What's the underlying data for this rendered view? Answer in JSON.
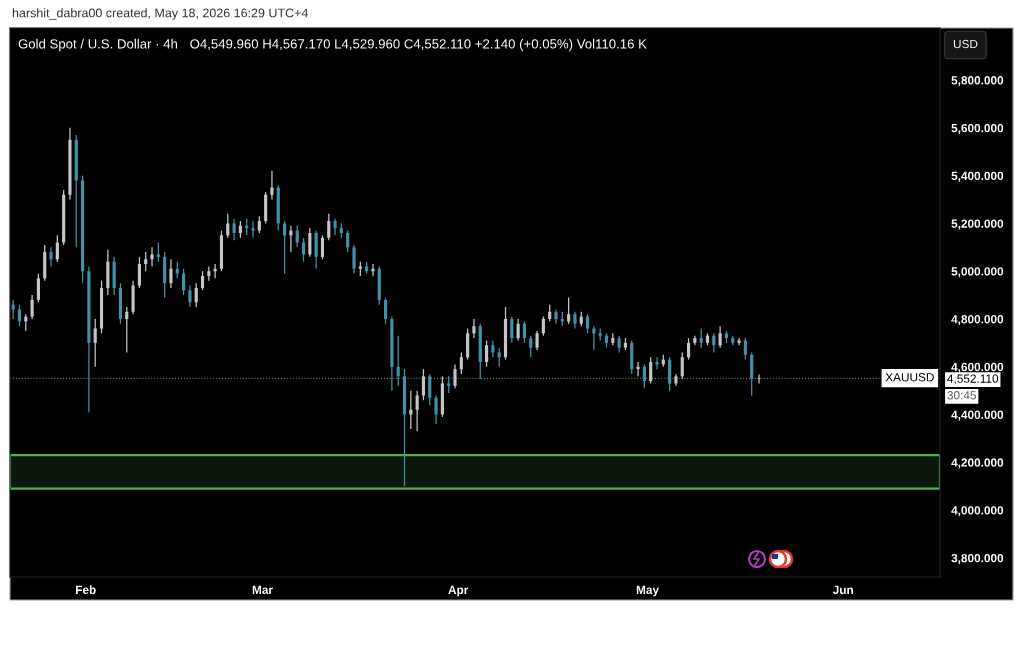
{
  "chart_data": {
    "type": "candlestick",
    "title": "Gold Spot / U.S. Dollar · 4h",
    "subtitle": "O4,549.960 H4,567.170 L4,529.960 C4,552.110 +2.140 (+0.05%) Vol110.16 K",
    "annotations": [
      "harshit_dabra00 created, May 18, 2026 16:29 UTC+4",
      "USD",
      "4,552.110",
      "30:45"
    ],
    "x": [
      "2026-01-20T12:00",
      "2026-01-21T12:00",
      "2026-01-22T12:00",
      "2026-01-23T12:00",
      "2026-01-24T12:00",
      "2026-01-25T12:00",
      "2026-01-26T12:00",
      "2026-01-27T12:00",
      "2026-01-28T12:00",
      "2026-01-29T12:00",
      "2026-01-30T12:00",
      "2026-01-31T12:00",
      "2026-02-01T12:00",
      "2026-02-02T12:00",
      "2026-02-03T12:00",
      "2026-02-04T12:00",
      "2026-02-05T12:00",
      "2026-02-06T12:00",
      "2026-02-07T12:00",
      "2026-02-08T12:00",
      "2026-02-09T12:00",
      "2026-02-10T12:00",
      "2026-02-11T12:00",
      "2026-02-12T12:00",
      "2026-02-13T12:00",
      "2026-02-14T12:00",
      "2026-02-15T12:00",
      "2026-02-16T12:00",
      "2026-02-17T12:00",
      "2026-02-18T12:00",
      "2026-02-19T12:00",
      "2026-02-20T12:00",
      "2026-02-21T12:00",
      "2026-02-22T12:00",
      "2026-02-23T12:00",
      "2026-02-24T12:00",
      "2026-02-25T12:00",
      "2026-02-26T12:00",
      "2026-02-27T12:00",
      "2026-02-28T12:00",
      "2026-03-01T12:00",
      "2026-03-02T12:00",
      "2026-03-03T12:00",
      "2026-03-04T12:00",
      "2026-03-05T12:00",
      "2026-03-06T12:00",
      "2026-03-07T12:00",
      "2026-03-08T12:00",
      "2026-03-09T12:00",
      "2026-03-10T12:00",
      "2026-03-11T12:00",
      "2026-03-12T12:00",
      "2026-03-13T12:00",
      "2026-03-14T12:00",
      "2026-03-15T12:00",
      "2026-03-16T12:00",
      "2026-03-17T12:00",
      "2026-03-18T12:00",
      "2026-03-19T12:00",
      "2026-03-20T12:00",
      "2026-03-21T12:00",
      "2026-03-22T12:00",
      "2026-03-23T12:00",
      "2026-03-24T12:00",
      "2026-03-25T12:00",
      "2026-03-26T12:00",
      "2026-03-27T12:00",
      "2026-03-28T12:00",
      "2026-03-29T12:00",
      "2026-03-30T12:00",
      "2026-03-31T12:00",
      "2026-04-01T12:00",
      "2026-04-02T12:00",
      "2026-04-03T12:00",
      "2026-04-04T12:00",
      "2026-04-05T12:00",
      "2026-04-06T12:00",
      "2026-04-07T12:00",
      "2026-04-08T12:00",
      "2026-04-09T12:00",
      "2026-04-10T12:00",
      "2026-04-11T12:00",
      "2026-04-12T12:00",
      "2026-04-13T12:00",
      "2026-04-14T12:00",
      "2026-04-15T12:00",
      "2026-04-16T12:00",
      "2026-04-17T12:00",
      "2026-04-18T12:00",
      "2026-04-19T12:00",
      "2026-04-20T12:00",
      "2026-04-21T12:00",
      "2026-04-22T12:00",
      "2026-04-23T12:00",
      "2026-04-24T12:00",
      "2026-04-25T12:00",
      "2026-04-26T12:00",
      "2026-04-27T12:00",
      "2026-04-28T12:00",
      "2026-04-29T12:00",
      "2026-04-30T12:00",
      "2026-05-01T12:00",
      "2026-05-02T12:00",
      "2026-05-03T12:00",
      "2026-05-04T12:00",
      "2026-05-05T12:00",
      "2026-05-06T12:00",
      "2026-05-07T12:00",
      "2026-05-08T12:00",
      "2026-05-09T12:00",
      "2026-05-10T12:00",
      "2026-05-11T12:00",
      "2026-05-12T12:00",
      "2026-05-13T12:00",
      "2026-05-14T12:00",
      "2026-05-15T12:00",
      "2026-05-16T12:00",
      "2026-05-17T12:00",
      "2026-05-18T16:00"
    ],
    "ohlc": [
      [
        4860,
        4880,
        4800,
        4840
      ],
      [
        4840,
        4860,
        4770,
        4790
      ],
      [
        4790,
        4820,
        4750,
        4810
      ],
      [
        4810,
        4900,
        4800,
        4880
      ],
      [
        4880,
        4990,
        4870,
        4970
      ],
      [
        4970,
        5110,
        4960,
        5080
      ],
      [
        5080,
        5100,
        5020,
        5050
      ],
      [
        5050,
        5150,
        5040,
        5120
      ],
      [
        5120,
        5340,
        5110,
        5320
      ],
      [
        5320,
        5600,
        5300,
        5550
      ],
      [
        5550,
        5570,
        5100,
        5380
      ],
      [
        5380,
        5400,
        4950,
        5000
      ],
      [
        5000,
        5020,
        4410,
        4700
      ],
      [
        4700,
        4800,
        4600,
        4760
      ],
      [
        4760,
        4960,
        4740,
        4930
      ],
      [
        4930,
        5090,
        4900,
        5040
      ],
      [
        5040,
        5060,
        4900,
        4930
      ],
      [
        4930,
        4950,
        4780,
        4800
      ],
      [
        4800,
        4850,
        4660,
        4830
      ],
      [
        4830,
        4960,
        4820,
        4940
      ],
      [
        4940,
        5060,
        4930,
        5030
      ],
      [
        5030,
        5080,
        5000,
        5050
      ],
      [
        5050,
        5100,
        5020,
        5070
      ],
      [
        5070,
        5120,
        5040,
        5060
      ],
      [
        5060,
        5080,
        4890,
        4950
      ],
      [
        4950,
        5050,
        4930,
        5010
      ],
      [
        5010,
        5040,
        4970,
        4990
      ],
      [
        4990,
        5010,
        4900,
        4920
      ],
      [
        4920,
        4940,
        4850,
        4870
      ],
      [
        4870,
        4950,
        4850,
        4930
      ],
      [
        4930,
        5000,
        4920,
        4980
      ],
      [
        4980,
        5020,
        4960,
        5000
      ],
      [
        5000,
        5030,
        4970,
        5010
      ],
      [
        5010,
        5170,
        5000,
        5150
      ],
      [
        5150,
        5240,
        5140,
        5200
      ],
      [
        5200,
        5220,
        5130,
        5160
      ],
      [
        5160,
        5210,
        5140,
        5190
      ],
      [
        5190,
        5220,
        5150,
        5180
      ],
      [
        5180,
        5210,
        5140,
        5170
      ],
      [
        5170,
        5230,
        5160,
        5210
      ],
      [
        5210,
        5330,
        5200,
        5320
      ],
      [
        5320,
        5420,
        5300,
        5350
      ],
      [
        5350,
        5360,
        5170,
        5200
      ],
      [
        5200,
        5210,
        4990,
        5150
      ],
      [
        5150,
        5190,
        5080,
        5170
      ],
      [
        5170,
        5190,
        5100,
        5120
      ],
      [
        5120,
        5140,
        5040,
        5070
      ],
      [
        5070,
        5180,
        5060,
        5160
      ],
      [
        5160,
        5170,
        5010,
        5060
      ],
      [
        5060,
        5150,
        5050,
        5140
      ],
      [
        5140,
        5240,
        5130,
        5210
      ],
      [
        5210,
        5220,
        5150,
        5180
      ],
      [
        5180,
        5200,
        5140,
        5160
      ],
      [
        5160,
        5170,
        5080,
        5100
      ],
      [
        5100,
        5110,
        4990,
        5010
      ],
      [
        5010,
        5040,
        4980,
        5020
      ],
      [
        5020,
        5040,
        4990,
        5000
      ],
      [
        5000,
        5030,
        4980,
        5010
      ],
      [
        5010,
        5020,
        4860,
        4880
      ],
      [
        4880,
        4890,
        4780,
        4800
      ],
      [
        4800,
        4810,
        4500,
        4600
      ],
      [
        4600,
        4730,
        4520,
        4560
      ],
      [
        4560,
        4590,
        4100,
        4400
      ],
      [
        4400,
        4500,
        4340,
        4420
      ],
      [
        4420,
        4500,
        4330,
        4480
      ],
      [
        4480,
        4590,
        4460,
        4560
      ],
      [
        4560,
        4570,
        4440,
        4470
      ],
      [
        4470,
        4480,
        4360,
        4400
      ],
      [
        4400,
        4560,
        4390,
        4530
      ],
      [
        4530,
        4560,
        4490,
        4520
      ],
      [
        4520,
        4610,
        4510,
        4590
      ],
      [
        4590,
        4660,
        4570,
        4640
      ],
      [
        4640,
        4760,
        4630,
        4740
      ],
      [
        4740,
        4800,
        4720,
        4770
      ],
      [
        4770,
        4780,
        4550,
        4620
      ],
      [
        4620,
        4710,
        4600,
        4690
      ],
      [
        4690,
        4710,
        4640,
        4660
      ],
      [
        4660,
        4680,
        4600,
        4640
      ],
      [
        4640,
        4850,
        4630,
        4800
      ],
      [
        4800,
        4810,
        4700,
        4720
      ],
      [
        4720,
        4800,
        4710,
        4780
      ],
      [
        4780,
        4790,
        4700,
        4720
      ],
      [
        4720,
        4730,
        4640,
        4680
      ],
      [
        4680,
        4750,
        4670,
        4740
      ],
      [
        4740,
        4810,
        4730,
        4800
      ],
      [
        4800,
        4860,
        4790,
        4830
      ],
      [
        4830,
        4840,
        4780,
        4800
      ],
      [
        4800,
        4830,
        4770,
        4790
      ],
      [
        4790,
        4890,
        4780,
        4820
      ],
      [
        4820,
        4830,
        4760,
        4780
      ],
      [
        4780,
        4830,
        4770,
        4810
      ],
      [
        4810,
        4820,
        4740,
        4760
      ],
      [
        4760,
        4770,
        4670,
        4740
      ],
      [
        4740,
        4760,
        4710,
        4730
      ],
      [
        4730,
        4740,
        4680,
        4700
      ],
      [
        4700,
        4740,
        4690,
        4720
      ],
      [
        4720,
        4730,
        4660,
        4680
      ],
      [
        4680,
        4720,
        4670,
        4700
      ],
      [
        4700,
        4710,
        4570,
        4590
      ],
      [
        4590,
        4620,
        4560,
        4600
      ],
      [
        4600,
        4610,
        4510,
        4540
      ],
      [
        4540,
        4640,
        4530,
        4620
      ],
      [
        4620,
        4640,
        4590,
        4610
      ],
      [
        4610,
        4650,
        4600,
        4630
      ],
      [
        4630,
        4640,
        4500,
        4530
      ],
      [
        4530,
        4570,
        4520,
        4560
      ],
      [
        4560,
        4660,
        4550,
        4640
      ],
      [
        4640,
        4720,
        4630,
        4700
      ],
      [
        4700,
        4730,
        4690,
        4720
      ],
      [
        4720,
        4760,
        4680,
        4700
      ],
      [
        4700,
        4740,
        4690,
        4730
      ],
      [
        4730,
        4740,
        4660,
        4690
      ],
      [
        4690,
        4770,
        4680,
        4740
      ],
      [
        4740,
        4750,
        4700,
        4720
      ],
      [
        4720,
        4730,
        4690,
        4700
      ],
      [
        4700,
        4720,
        4690,
        4710
      ],
      [
        4710,
        4720,
        4630,
        4650
      ],
      [
        4650,
        4660,
        4480,
        4550
      ],
      [
        4549.96,
        4567.17,
        4529.96,
        4552.11
      ]
    ],
    "xlim": [
      "2026-01-20T00:00",
      "2026-06-16T08:00"
    ],
    "xticks": [
      {
        "value": "2026-02-01",
        "label": "Feb"
      },
      {
        "value": "2026-03-01",
        "label": "Mar"
      },
      {
        "value": "2026-04-01",
        "label": "Apr"
      },
      {
        "value": "2026-05-01",
        "label": "May"
      },
      {
        "value": "2026-06-01",
        "label": "Jun"
      }
    ],
    "ylim": [
      3720,
      6018
    ],
    "yticks": [
      {
        "value": 3800,
        "label": "3,800.000"
      },
      {
        "value": 4000,
        "label": "4,000.000"
      },
      {
        "value": 4200,
        "label": "4,200.000"
      },
      {
        "value": 4400,
        "label": "4,400.000"
      },
      {
        "value": 4600,
        "label": "4,600.000"
      },
      {
        "value": 4800,
        "label": "4,800.000"
      },
      {
        "value": 5000,
        "label": "5,000.000"
      },
      {
        "value": 5200,
        "label": "5,200.000"
      },
      {
        "value": 5400,
        "label": "5,400.000"
      },
      {
        "value": 5600,
        "label": "5,600.000"
      },
      {
        "value": 5800,
        "label": "5,800.000"
      }
    ],
    "ref_lines": [
      {
        "axis": "y",
        "value": 4552.11,
        "label": "XAUUSD",
        "color": "#8c8c8c",
        "line_style": "dotted"
      }
    ],
    "bands": [
      {
        "axis": "y",
        "from": 4090,
        "to": 4230,
        "color": "#4caf50"
      }
    ]
  }
}
